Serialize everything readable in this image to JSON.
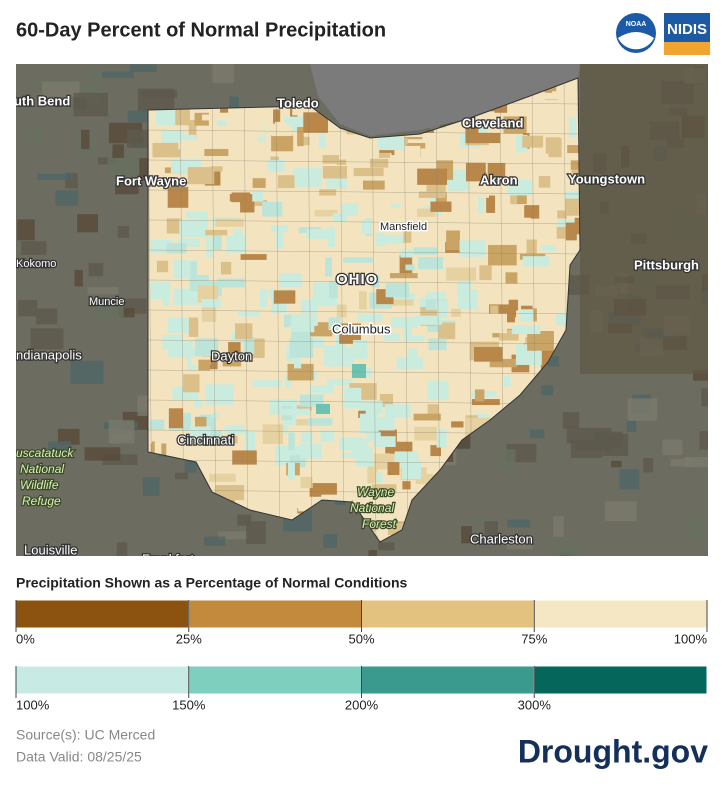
{
  "header": {
    "title": "60-Day Percent of Normal Precipitation",
    "logos": [
      "NOAA",
      "NIDIS"
    ]
  },
  "map": {
    "labels": [
      "outh Bend",
      "Toledo",
      "Cleveland",
      "Fort Wayne",
      "Akron",
      "Youngstown",
      "Mansfield",
      "OHIO",
      "Kokomo",
      "Pittsburgh",
      "Muncie",
      "Columbus",
      "ndianapolis",
      "Dayton",
      "Cincinnati",
      "uscatatuck",
      "National",
      "Wildlife",
      "Refuge",
      "Wayne",
      "National",
      "Forest",
      "Charleston",
      "Louisville",
      "Frankfort"
    ]
  },
  "legend": {
    "title": "Precipitation Shown as a Percentage of Normal Conditions",
    "dry": {
      "colors": [
        "#8c5210",
        "#c38a3e",
        "#e2c27e",
        "#f5e6c4"
      ],
      "labels": [
        "0%",
        "25%",
        "50%",
        "75%",
        "100%"
      ]
    },
    "wet": {
      "colors": [
        "#c7ebe4",
        "#7fcfbf",
        "#3a9a8d",
        "#05665c"
      ],
      "labels": [
        "100%",
        "150%",
        "200%",
        "300%"
      ]
    }
  },
  "footer": {
    "source": "Source(s): UC Merced",
    "date": "Data Valid: 08/25/25",
    "brand": "Drought.gov"
  }
}
